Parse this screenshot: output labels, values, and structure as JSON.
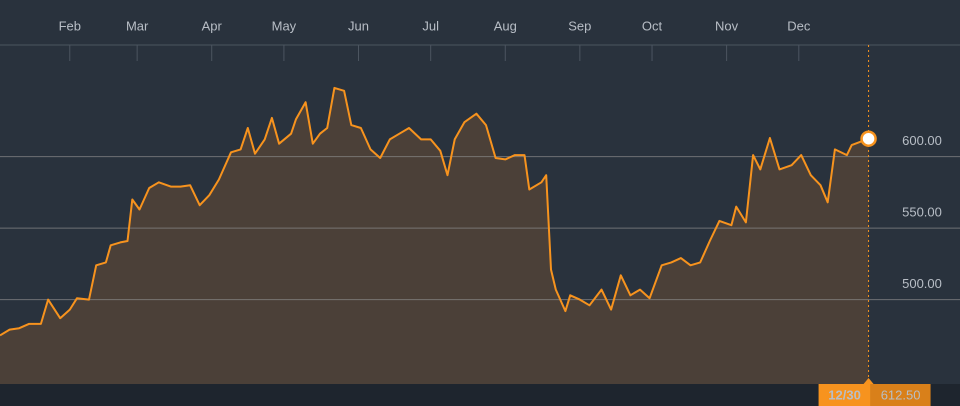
{
  "chart_data": {
    "type": "area",
    "x": [
      2,
      6,
      10,
      14,
      19,
      22,
      27,
      31,
      34,
      39,
      42,
      46,
      48,
      52,
      55,
      57,
      60,
      64,
      68,
      73,
      77,
      81,
      85,
      89,
      93,
      98,
      102,
      105,
      108,
      112,
      115,
      118,
      123,
      125,
      129,
      132,
      135,
      138,
      141,
      145,
      148,
      152,
      156,
      160,
      164,
      168,
      172,
      177,
      181,
      185,
      188,
      191,
      195,
      200,
      204,
      208,
      212,
      216,
      220,
      222,
      227,
      229,
      231,
      233,
      237,
      239,
      243,
      247,
      252,
      256,
      260,
      264,
      268,
      272,
      277,
      281,
      285,
      289,
      293,
      297,
      301,
      306,
      308,
      312,
      315,
      318,
      322,
      326,
      331,
      335,
      339,
      343,
      346,
      349,
      354,
      356,
      363
    ],
    "series": [
      {
        "color": "#f7931e",
        "values": [
          475,
          479,
          480,
          483,
          483,
          500,
          487,
          493,
          501,
          500,
          524,
          526,
          538,
          540,
          541,
          570,
          563,
          578,
          582,
          579,
          579,
          580,
          566,
          573,
          584,
          603,
          605,
          620,
          602,
          612,
          627,
          609,
          616,
          626,
          638,
          609,
          616,
          620,
          648,
          646,
          622,
          620,
          605,
          599,
          612,
          616,
          620,
          612,
          612,
          604,
          587,
          612,
          624,
          630,
          622,
          599,
          598,
          601,
          601,
          577,
          582,
          587,
          521,
          507,
          492,
          503,
          500,
          496,
          507,
          493,
          517,
          503,
          507,
          501,
          524,
          526,
          529,
          524,
          526,
          541,
          555,
          552,
          565,
          554,
          601,
          591,
          613,
          591,
          594,
          601,
          587,
          580,
          568,
          605,
          601,
          608,
          612.5
        ]
      }
    ],
    "xlim": [
      2,
      401
    ],
    "xticks": [
      {
        "value": 31,
        "label": "Feb"
      },
      {
        "value": 59,
        "label": "Mar"
      },
      {
        "value": 90,
        "label": "Apr"
      },
      {
        "value": 120,
        "label": "May"
      },
      {
        "value": 151,
        "label": "Jun"
      },
      {
        "value": 181,
        "label": "Jul"
      },
      {
        "value": 212,
        "label": "Aug"
      },
      {
        "value": 243,
        "label": "Sep"
      },
      {
        "value": 273,
        "label": "Oct"
      },
      {
        "value": 304,
        "label": "Nov"
      },
      {
        "value": 334,
        "label": "Dec"
      }
    ],
    "ylim": [
      441,
      678
    ],
    "yticks": [
      {
        "value": 500,
        "label": "500.00"
      },
      {
        "value": 550,
        "label": "550.00"
      },
      {
        "value": 600,
        "label": "600.00"
      }
    ],
    "grid": true,
    "highlight": {
      "x": 363,
      "x_label": "12/30",
      "value": 612.5,
      "value_label": "612.50"
    }
  }
}
